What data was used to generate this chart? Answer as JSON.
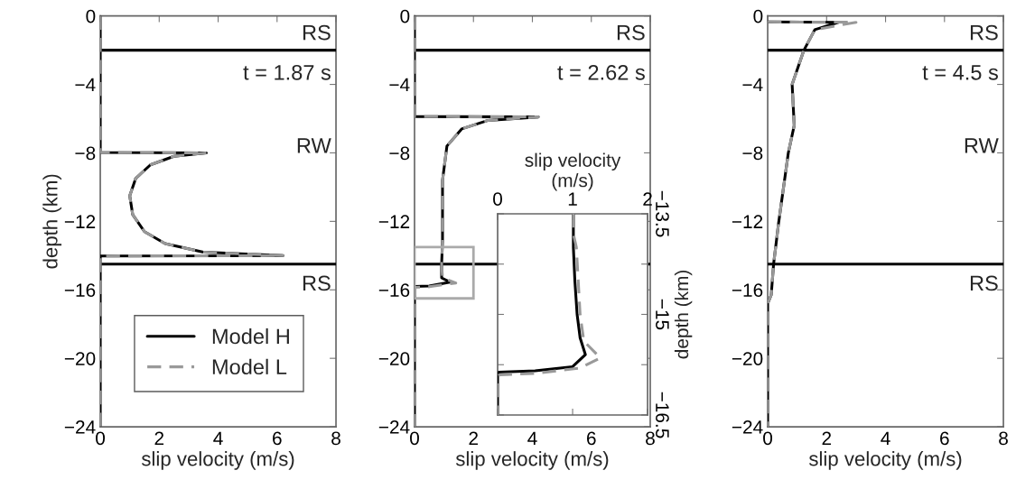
{
  "chart_data": [
    {
      "type": "line",
      "xlabel": "slip velocity (m/s)",
      "ylabel": "depth (km)",
      "xlim": [
        0,
        8
      ],
      "xticks": [
        0,
        2,
        4,
        6,
        8
      ],
      "ylim": [
        -24,
        0
      ],
      "yticks": [
        -24,
        -20,
        -16,
        -12,
        -8,
        -4,
        0
      ],
      "grid": false,
      "legend": "bottom left",
      "series": [
        {
          "name": "Model H",
          "color": "#000000",
          "line_style": "solid",
          "x": [
            0,
            0,
            3.6,
            2.5,
            1.7,
            1.2,
            1.0,
            1.1,
            1.5,
            2.2,
            3.5,
            6.2,
            0,
            0
          ],
          "values": [
            0,
            -7.98,
            -8.0,
            -8.2,
            -8.7,
            -9.5,
            -10.5,
            -11.6,
            -12.6,
            -13.3,
            -13.8,
            -14.0,
            -14.02,
            -24
          ]
        },
        {
          "name": "Model L",
          "color": "#999999",
          "line_style": "dashed",
          "x": [
            0,
            0,
            3.6,
            2.5,
            1.7,
            1.2,
            1.0,
            1.1,
            1.5,
            2.2,
            3.5,
            6.2,
            0,
            0
          ],
          "values": [
            0,
            -7.98,
            -8.0,
            -8.2,
            -8.7,
            -9.5,
            -10.5,
            -11.6,
            -12.6,
            -13.3,
            -13.8,
            -14.0,
            -14.02,
            -24
          ]
        }
      ],
      "ref_lines": [
        {
          "axis": "y",
          "value": -2,
          "color": "#000000"
        },
        {
          "axis": "y",
          "value": -14.5,
          "color": "#000000"
        }
      ],
      "annotations": [
        "RS",
        "t = 1.87 s",
        "RW",
        "RS"
      ]
    },
    {
      "type": "line",
      "xlabel": "slip velocity (m/s)",
      "xlim": [
        0,
        8
      ],
      "xticks": [
        0,
        2,
        4,
        6,
        8
      ],
      "ylim": [
        -24,
        0
      ],
      "yticks": [
        -24,
        -20,
        -16,
        -12,
        -8,
        -4,
        0
      ],
      "grid": false,
      "series": [
        {
          "color": "#000000",
          "line_style": "solid",
          "x": [
            0,
            0,
            4.2,
            2.5,
            1.6,
            1.1,
            0.95,
            0.95,
            0.92,
            0.92,
            1.2,
            0.5,
            0,
            0
          ],
          "values": [
            0,
            -5.88,
            -5.9,
            -6.1,
            -6.6,
            -7.6,
            -9.6,
            -13.1,
            -14.5,
            -15.3,
            -15.55,
            -15.78,
            -15.8,
            -24
          ]
        },
        {
          "color": "#999999",
          "line_style": "dashed",
          "x": [
            0,
            0,
            4.2,
            2.5,
            1.6,
            1.1,
            0.95,
            0.95,
            0.92,
            0.95,
            1.4,
            0.5,
            0,
            0
          ],
          "values": [
            0,
            -5.88,
            -5.9,
            -6.1,
            -6.6,
            -7.6,
            -9.6,
            -13.1,
            -14.5,
            -15.3,
            -15.6,
            -15.82,
            -15.85,
            -24
          ]
        }
      ],
      "ref_lines": [
        {
          "axis": "y",
          "value": -2,
          "color": "#000000"
        },
        {
          "axis": "y",
          "value": -14.5,
          "color": "#000000"
        }
      ],
      "annotations": [
        "RS",
        "t = 2.62 s"
      ]
    },
    {
      "type": "line",
      "xlabel": "slip velocity\n(m/s)",
      "ylabel": "depth (km)",
      "xlim": [
        0,
        2
      ],
      "xticks": [
        0,
        1,
        2
      ],
      "ylim": [
        -16.5,
        -13.5
      ],
      "yticks": [
        {
          "value": -16.5,
          "label": "−16.5"
        },
        {
          "value": -15.75,
          "label": null
        },
        {
          "value": -15,
          "label": "−15"
        },
        {
          "value": -14.25,
          "label": null
        },
        {
          "value": -13.5,
          "label": "−13.5"
        }
      ],
      "grid": false,
      "series": [
        {
          "color": "#000000",
          "line_style": "solid",
          "x": [
            1.01,
            1.01,
            1.03,
            1.06,
            1.1,
            1.17,
            1.0,
            0.5,
            0.02,
            0,
            0
          ],
          "values": [
            -13.5,
            -14.0,
            -14.5,
            -15.0,
            -15.35,
            -15.6,
            -15.78,
            -15.84,
            -15.86,
            -15.88,
            -16.5
          ]
        },
        {
          "color": "#999999",
          "line_style": "dashed",
          "x": [
            1.01,
            1.01,
            1.05,
            1.07,
            1.1,
            1.15,
            1.37,
            1.1,
            0.5,
            0.03,
            0,
            0
          ],
          "values": [
            -13.5,
            -13.8,
            -14.0,
            -14.4,
            -15.0,
            -15.4,
            -15.65,
            -15.8,
            -15.88,
            -15.9,
            -15.92,
            -16.5
          ]
        }
      ]
    },
    {
      "type": "line",
      "xlabel": "slip velocity (m/s)",
      "xlim": [
        0,
        8
      ],
      "xticks": [
        0,
        2,
        4,
        6,
        8
      ],
      "ylim": [
        -24,
        0
      ],
      "yticks": [
        -24,
        -20,
        -16,
        -12,
        -8,
        -4,
        0
      ],
      "grid": false,
      "series": [
        {
          "color": "#000000",
          "line_style": "solid",
          "x": [
            0,
            2.4,
            1.6,
            1.23,
            0.83,
            0.9,
            0.7,
            0.37,
            0.2,
            0.12,
            0,
            0
          ],
          "values": [
            -0.35,
            -0.37,
            -0.8,
            -2.0,
            -4.0,
            -6.4,
            -8.0,
            -12.1,
            -14.5,
            -16.3,
            -16.8,
            -24
          ]
        },
        {
          "color": "#999999",
          "line_style": "dashed",
          "x": [
            0,
            3.0,
            1.6,
            1.23,
            0.83,
            0.9,
            0.7,
            0.37,
            0.2,
            0.12,
            0,
            0
          ],
          "values": [
            -0.35,
            -0.37,
            -0.8,
            -2.0,
            -4.0,
            -6.4,
            -8.0,
            -12.1,
            -14.5,
            -16.3,
            -16.8,
            -24
          ]
        }
      ],
      "ref_lines": [
        {
          "axis": "y",
          "value": -2,
          "color": "#000000"
        },
        {
          "axis": "y",
          "value": -14.5,
          "color": "#000000"
        }
      ],
      "annotations": [
        "RS",
        "t = 4.5 s",
        "RW",
        "RS"
      ]
    }
  ]
}
